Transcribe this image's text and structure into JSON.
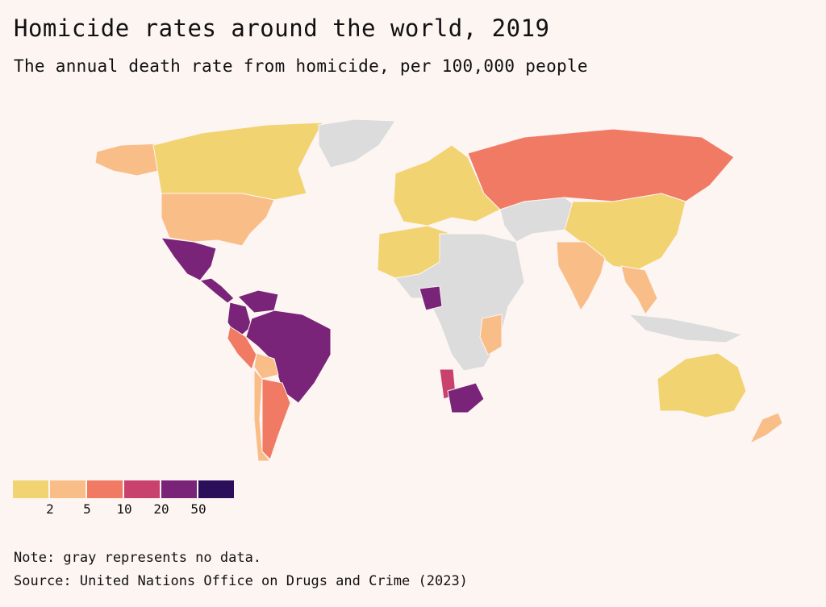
{
  "header": {
    "title": "Homicide rates around the world, 2019",
    "subtitle": "The annual death rate from homicide, per 100,000 people"
  },
  "legend": {
    "bins": [
      {
        "color": "#f2d371"
      },
      {
        "color": "#f9bd88"
      },
      {
        "color": "#f07a63"
      },
      {
        "color": "#c8426d"
      },
      {
        "color": "#7a2479"
      },
      {
        "color": "#2c0f5b"
      }
    ],
    "ticks": [
      "2",
      "5",
      "10",
      "20",
      "50"
    ],
    "no_data_color": "#dcdcdc"
  },
  "regions": [
    {
      "name": "canada",
      "color": "#f2d371"
    },
    {
      "name": "alaska",
      "color": "#f9bd88"
    },
    {
      "name": "greenland",
      "color": "#dcdcdc"
    },
    {
      "name": "usa",
      "color": "#f9bd88"
    },
    {
      "name": "mexico",
      "color": "#7a2479"
    },
    {
      "name": "central-america",
      "color": "#7a2479"
    },
    {
      "name": "colombia",
      "color": "#7a2479"
    },
    {
      "name": "venezuela",
      "color": "#7a2479"
    },
    {
      "name": "peru",
      "color": "#f07a63"
    },
    {
      "name": "brazil",
      "color": "#7a2479"
    },
    {
      "name": "bolivia",
      "color": "#f9bd88"
    },
    {
      "name": "argentina",
      "color": "#f07a63"
    },
    {
      "name": "chile",
      "color": "#f9bd88"
    },
    {
      "name": "europe",
      "color": "#f2d371"
    },
    {
      "name": "russia",
      "color": "#f07a63"
    },
    {
      "name": "china",
      "color": "#f2d371"
    },
    {
      "name": "india",
      "color": "#f9bd88"
    },
    {
      "name": "australia",
      "color": "#f2d371"
    },
    {
      "name": "south-africa",
      "color": "#7a2479"
    },
    {
      "name": "nigeria",
      "color": "#7a2479"
    },
    {
      "name": "africa-no-data",
      "color": "#dcdcdc"
    }
  ],
  "footer": {
    "note": "Note: gray represents no data.",
    "source": "Source: United Nations Office on Drugs and Crime (2023)"
  }
}
